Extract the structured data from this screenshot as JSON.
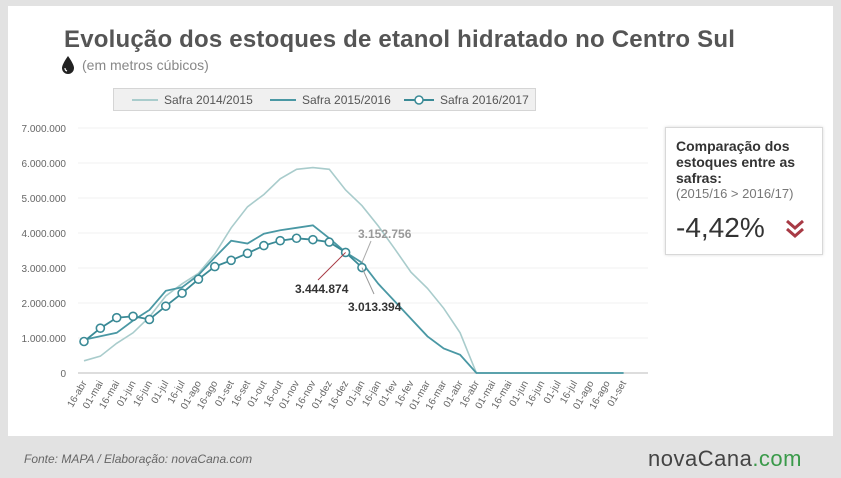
{
  "header": {
    "title": "Evolução dos estoques de etanol hidratado no Centro Sul",
    "subtitle": "(em metros cúbicos)",
    "subtitle_icon": "drop-icon"
  },
  "comparison": {
    "title": "Comparação dos estoques entre as safras:",
    "detail": "(2015/16 > 2016/17)",
    "value": "-4,42%",
    "icon": "double-chevron-down-icon",
    "icon_color": "#a83a45"
  },
  "footer": {
    "source": "Fonte: MAPA  / Elaboração: novaCana.com",
    "logo_main": "novaCana",
    "logo_suffix": ".com"
  },
  "chart_data": {
    "type": "line",
    "categories": [
      "16-abr",
      "01-mai",
      "16-mai",
      "01-jun",
      "16-jun",
      "01-jul",
      "16-jul",
      "01-ago",
      "16-ago",
      "01-set",
      "16-set",
      "01-out",
      "16-out",
      "01-nov",
      "16-nov",
      "01-dez",
      "16-dez",
      "01-jan",
      "16-jan",
      "01-fev",
      "16-fev",
      "01-mar",
      "16-mar",
      "01-abr",
      "16-abr",
      "01-mai",
      "16-mai",
      "01-jun",
      "16-jun",
      "01-jul",
      "16-jul",
      "01-ago",
      "16-ago",
      "01-set"
    ],
    "ylim": [
      0,
      7000000
    ],
    "yticks": [
      {
        "value": 0,
        "label": "0"
      },
      {
        "value": 1000000,
        "label": "1.000.000"
      },
      {
        "value": 2000000,
        "label": "2.000.000"
      },
      {
        "value": 3000000,
        "label": "3.000.000"
      },
      {
        "value": 4000000,
        "label": "4.000.000"
      },
      {
        "value": 5000000,
        "label": "5.000.000"
      },
      {
        "value": 6000000,
        "label": "6.000.000"
      },
      {
        "value": 7000000,
        "label": "7.000.000"
      }
    ],
    "series": [
      {
        "name": "Safra 2014/2015",
        "color": "#a9cccc",
        "markers": false,
        "values": [
          350000,
          480000,
          850000,
          1150000,
          1600000,
          2200000,
          2550000,
          2850000,
          3400000,
          4150000,
          4750000,
          5100000,
          5550000,
          5820000,
          5870000,
          5820000,
          5230000,
          4780000,
          4200000,
          3550000,
          2880000,
          2420000,
          1850000,
          1150000,
          0,
          0,
          0,
          0,
          0,
          0,
          0,
          0,
          0,
          0
        ]
      },
      {
        "name": "Safra 2015/2016",
        "color": "#4a98a4",
        "markers": false,
        "values": [
          950000,
          1050000,
          1150000,
          1500000,
          1800000,
          2350000,
          2450000,
          2800000,
          3300000,
          3780000,
          3700000,
          3980000,
          4080000,
          4150000,
          4220000,
          3850000,
          3450000,
          3152756,
          2550000,
          2050000,
          1550000,
          1050000,
          700000,
          520000,
          0,
          0,
          0,
          0,
          0,
          0,
          0,
          0,
          0,
          0
        ]
      },
      {
        "name": "Safra 2016/2017",
        "color": "#3a8a96",
        "markers": true,
        "values": [
          900000,
          1280000,
          1580000,
          1620000,
          1530000,
          1910000,
          2280000,
          2680000,
          3040000,
          3220000,
          3420000,
          3640000,
          3780000,
          3850000,
          3810000,
          3740000,
          3444874,
          3013394,
          null,
          null,
          null,
          null,
          null,
          null,
          null,
          null,
          null,
          null,
          null,
          null,
          null,
          null,
          null,
          null
        ]
      }
    ],
    "annotations": [
      {
        "text": "3.152.756",
        "index": 17,
        "value": 3152756,
        "color": "#999999"
      },
      {
        "text": "3.444.874",
        "index": 16,
        "value": 3444874,
        "color": "#333333"
      },
      {
        "text": "3.013.394",
        "index": 17,
        "value": 3013394,
        "color": "#333333"
      }
    ]
  }
}
